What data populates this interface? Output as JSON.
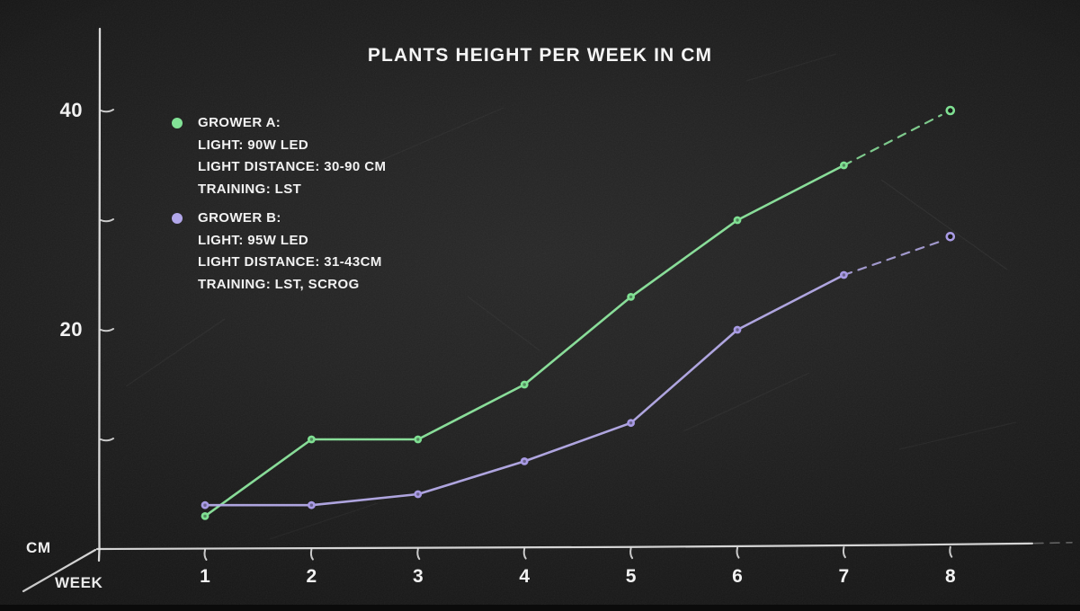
{
  "title": "PLANTS HEIGHT PER WEEK IN CM",
  "axes": {
    "y_axis_unit": "CM",
    "x_axis_unit": "WEEK",
    "y_tick_labels": [
      "40",
      "20"
    ],
    "x_tick_labels": [
      "1",
      "2",
      "3",
      "4",
      "5",
      "6",
      "7",
      "8"
    ]
  },
  "legend": [
    {
      "series": "grower-a",
      "marker_color": "#82e296",
      "lines": [
        "GROWER A:",
        "LIGHT: 90W LED",
        "LIGHT DISTANCE: 30-90 CM",
        "TRAINING: LST"
      ]
    },
    {
      "series": "grower-b",
      "marker_color": "#b2a7ea",
      "lines": [
        "GROWER B:",
        "LIGHT: 95W LED",
        "LIGHT DISTANCE: 31-43CM",
        "TRAINING: LST, SCROG"
      ]
    }
  ],
  "chart_data": {
    "type": "line",
    "title": "PLANTS HEIGHT PER WEEK IN CM",
    "xlabel": "WEEK",
    "ylabel": "CM",
    "x": [
      1,
      2,
      3,
      4,
      5,
      6,
      7,
      8
    ],
    "series": [
      {
        "name": "Grower A",
        "color": "#8ee79f",
        "point_color": "#7fe092",
        "values": [
          3,
          10,
          10,
          15,
          23,
          30,
          35,
          40
        ],
        "last_segment_dashed": true,
        "last_point_hollow": true
      },
      {
        "name": "Grower B",
        "color": "#b6ace9",
        "point_color": "#a89ae4",
        "values": [
          4,
          4,
          5,
          8,
          11.5,
          20,
          25,
          28.5
        ],
        "last_segment_dashed": true,
        "last_point_hollow": true
      }
    ],
    "xlim": [
      1,
      8
    ],
    "ylim": [
      0,
      45
    ],
    "y_ticks": [
      10,
      20,
      30,
      40
    ],
    "y_labeled_ticks": [
      20,
      40
    ],
    "grid": false,
    "legend_position": "upper-left",
    "style": "hand-drawn chalkboard"
  }
}
